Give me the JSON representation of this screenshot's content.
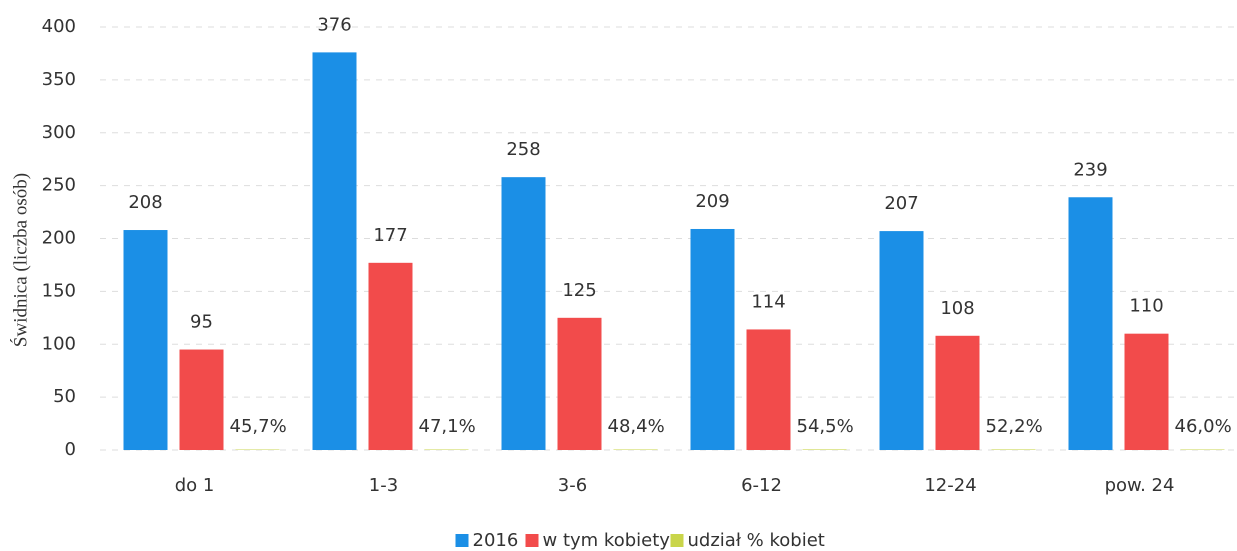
{
  "chart_data": {
    "type": "bar",
    "ylabel": "Świdnica (liczba osób)",
    "categories": [
      "do 1",
      "1-3",
      "3-6",
      "6-12",
      "12-24",
      "pow. 24"
    ],
    "series": [
      {
        "name": "2016",
        "color": "#1b8fe6",
        "values": [
          208,
          376,
          258,
          209,
          207,
          239
        ]
      },
      {
        "name": "w tym kobiety",
        "color": "#f24b4b",
        "values": [
          95,
          177,
          125,
          114,
          108,
          110
        ]
      },
      {
        "name": "udział % kobiet",
        "color": "#c9d54a",
        "values": [
          0.457,
          0.471,
          0.484,
          0.545,
          0.522,
          0.46
        ],
        "value_labels": [
          "45,7%",
          "47,1%",
          "48,4%",
          "54,5%",
          "52,2%",
          "46,0%"
        ]
      }
    ],
    "ylim": [
      0,
      400
    ],
    "yticks": [
      0,
      50,
      100,
      150,
      200,
      250,
      300,
      350,
      400
    ],
    "grid": true,
    "legend": "bottom"
  }
}
